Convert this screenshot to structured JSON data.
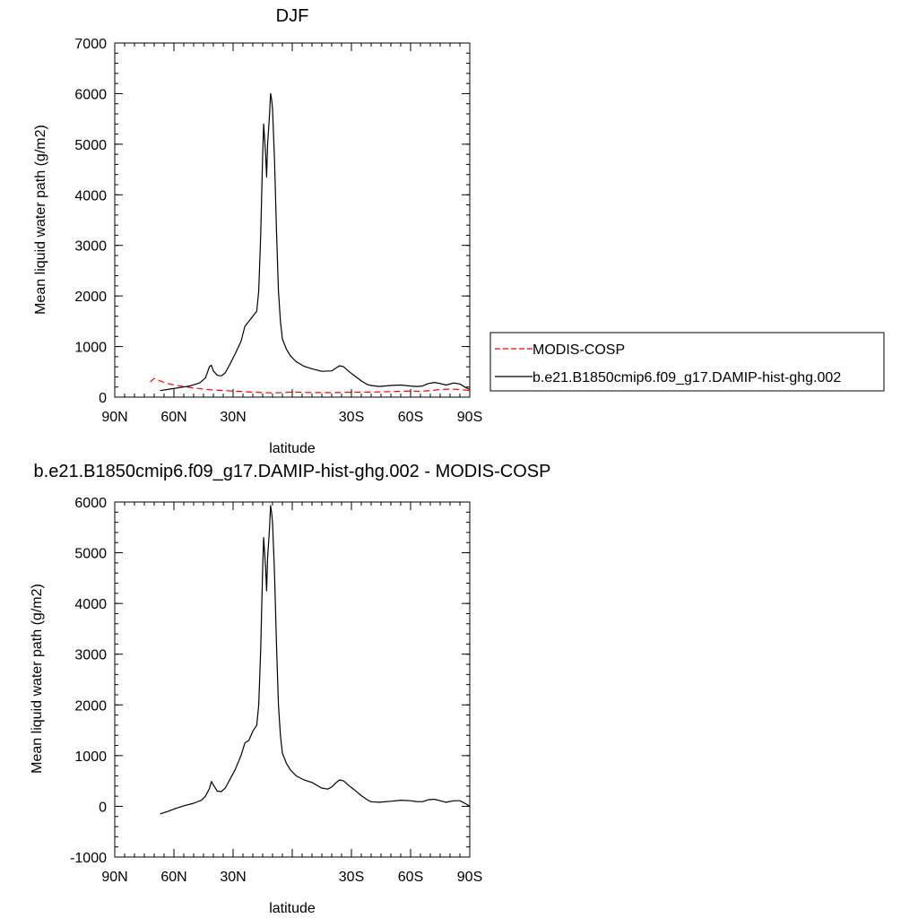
{
  "chart_data": [
    {
      "type": "line",
      "title": "DJF",
      "xlabel": "latitude",
      "ylabel": "Mean liquid water path (g/m2)",
      "xlim": [
        90,
        -90
      ],
      "ylim": [
        0,
        7000
      ],
      "x_ticks": [
        90,
        60,
        30,
        0,
        -30,
        -60,
        -90
      ],
      "x_tick_labels": [
        "90N",
        "60N",
        "30N",
        "",
        "30S",
        "60S",
        "90S"
      ],
      "y_ticks": [
        0,
        1000,
        2000,
        3000,
        4000,
        5000,
        6000,
        7000
      ],
      "y_tick_labels": [
        "0",
        "1000",
        "2000",
        "3000",
        "4000",
        "5000",
        "6000",
        "7000"
      ],
      "legend": {
        "placement": "right",
        "entries": [
          {
            "label": "MODIS-COSP",
            "color": "#ff0000",
            "dash": "dashed"
          },
          {
            "label": "b.e21.B1850cmip6.f09_g17.DAMIP-hist-ghg.002",
            "color": "#000000",
            "dash": "solid"
          }
        ]
      },
      "series": [
        {
          "name": "MODIS-COSP",
          "color": "#ff0000",
          "dash": "dashed",
          "points": [
            [
              72,
              300
            ],
            [
              70,
              370
            ],
            [
              67,
              320
            ],
            [
              64,
              280
            ],
            [
              60,
              240
            ],
            [
              55,
              210
            ],
            [
              50,
              180
            ],
            [
              45,
              160
            ],
            [
              40,
              140
            ],
            [
              30,
              120
            ],
            [
              20,
              100
            ],
            [
              15,
              90
            ],
            [
              10,
              85
            ],
            [
              5,
              90
            ],
            [
              0,
              100
            ],
            [
              -5,
              95
            ],
            [
              -10,
              90
            ],
            [
              -20,
              90
            ],
            [
              -30,
              95
            ],
            [
              -40,
              100
            ],
            [
              -50,
              110
            ],
            [
              -60,
              120
            ],
            [
              -65,
              115
            ],
            [
              -70,
              130
            ],
            [
              -75,
              150
            ],
            [
              -80,
              160
            ],
            [
              -85,
              150
            ],
            [
              -88,
              140
            ],
            [
              -90,
              130
            ]
          ]
        },
        {
          "name": "b.e21.B1850cmip6.f09_g17.DAMIP-hist-ghg.002",
          "color": "#000000",
          "dash": "solid",
          "points": [
            [
              67,
              130
            ],
            [
              62,
              160
            ],
            [
              57,
              190
            ],
            [
              52,
              220
            ],
            [
              47,
              280
            ],
            [
              44,
              380
            ],
            [
              42,
              600
            ],
            [
              41,
              630
            ],
            [
              40,
              520
            ],
            [
              38,
              430
            ],
            [
              36,
              420
            ],
            [
              34,
              480
            ],
            [
              32,
              620
            ],
            [
              29,
              850
            ],
            [
              26,
              1100
            ],
            [
              24,
              1400
            ],
            [
              22,
              1500
            ],
            [
              20,
              1600
            ],
            [
              18,
              1700
            ],
            [
              17,
              2100
            ],
            [
              16,
              3200
            ],
            [
              15,
              4800
            ],
            [
              14.5,
              5400
            ],
            [
              13.5,
              4800
            ],
            [
              13,
              4350
            ],
            [
              12.5,
              5000
            ],
            [
              11.5,
              5600
            ],
            [
              11,
              6000
            ],
            [
              10.5,
              5900
            ],
            [
              10,
              5700
            ],
            [
              9,
              4700
            ],
            [
              8,
              3300
            ],
            [
              7,
              2100
            ],
            [
              6,
              1500
            ],
            [
              5,
              1150
            ],
            [
              3,
              950
            ],
            [
              1,
              820
            ],
            [
              -2,
              700
            ],
            [
              -6,
              610
            ],
            [
              -10,
              560
            ],
            [
              -15,
              510
            ],
            [
              -20,
              520
            ],
            [
              -22,
              570
            ],
            [
              -24,
              620
            ],
            [
              -26,
              600
            ],
            [
              -29,
              500
            ],
            [
              -32,
              410
            ],
            [
              -35,
              320
            ],
            [
              -38,
              250
            ],
            [
              -40,
              230
            ],
            [
              -44,
              210
            ],
            [
              -50,
              230
            ],
            [
              -55,
              240
            ],
            [
              -60,
              220
            ],
            [
              -63,
              210
            ],
            [
              -66,
              220
            ],
            [
              -69,
              270
            ],
            [
              -72,
              290
            ],
            [
              -75,
              270
            ],
            [
              -78,
              240
            ],
            [
              -82,
              280
            ],
            [
              -85,
              260
            ],
            [
              -88,
              190
            ],
            [
              -90,
              150
            ]
          ]
        }
      ]
    },
    {
      "type": "line",
      "title": "b.e21.B1850cmip6.f09_g17.DAMIP-hist-ghg.002 - MODIS-COSP",
      "xlabel": "latitude",
      "ylabel": "Mean liquid water path (g/m2)",
      "xlim": [
        90,
        -90
      ],
      "ylim": [
        -1000,
        6000
      ],
      "x_ticks": [
        90,
        60,
        30,
        0,
        -30,
        -60,
        -90
      ],
      "x_tick_labels": [
        "90N",
        "60N",
        "30N",
        "",
        "30S",
        "60S",
        "90S"
      ],
      "y_ticks": [
        -1000,
        0,
        1000,
        2000,
        3000,
        4000,
        5000,
        6000
      ],
      "y_tick_labels": [
        "-1000",
        "0",
        "1000",
        "2000",
        "3000",
        "4000",
        "5000",
        "6000"
      ],
      "series": [
        {
          "color": "#000000",
          "dash": "solid",
          "points": [
            [
              67,
              -150
            ],
            [
              63,
              -100
            ],
            [
              59,
              -40
            ],
            [
              55,
              10
            ],
            [
              50,
              60
            ],
            [
              46,
              120
            ],
            [
              44,
              200
            ],
            [
              42,
              350
            ],
            [
              41,
              490
            ],
            [
              40,
              420
            ],
            [
              38,
              300
            ],
            [
              36,
              290
            ],
            [
              34,
              360
            ],
            [
              32,
              500
            ],
            [
              29,
              720
            ],
            [
              26,
              1000
            ],
            [
              24,
              1250
            ],
            [
              22,
              1300
            ],
            [
              20,
              1480
            ],
            [
              18,
              1600
            ],
            [
              17,
              2000
            ],
            [
              16,
              3100
            ],
            [
              15,
              4700
            ],
            [
              14.5,
              5300
            ],
            [
              13.5,
              4700
            ],
            [
              13,
              4250
            ],
            [
              12.5,
              4900
            ],
            [
              11.5,
              5500
            ],
            [
              11,
              5930
            ],
            [
              10.5,
              5800
            ],
            [
              10,
              5600
            ],
            [
              9,
              4600
            ],
            [
              8,
              3200
            ],
            [
              7,
              2000
            ],
            [
              6,
              1400
            ],
            [
              5,
              1050
            ],
            [
              3,
              850
            ],
            [
              1,
              720
            ],
            [
              -2,
              600
            ],
            [
              -6,
              520
            ],
            [
              -10,
              470
            ],
            [
              -15,
              360
            ],
            [
              -18,
              340
            ],
            [
              -20,
              380
            ],
            [
              -22,
              460
            ],
            [
              -24,
              520
            ],
            [
              -26,
              500
            ],
            [
              -29,
              400
            ],
            [
              -32,
              310
            ],
            [
              -35,
              210
            ],
            [
              -38,
              130
            ],
            [
              -40,
              90
            ],
            [
              -44,
              80
            ],
            [
              -50,
              100
            ],
            [
              -55,
              120
            ],
            [
              -60,
              110
            ],
            [
              -63,
              95
            ],
            [
              -66,
              90
            ],
            [
              -69,
              130
            ],
            [
              -72,
              140
            ],
            [
              -75,
              110
            ],
            [
              -78,
              80
            ],
            [
              -82,
              110
            ],
            [
              -85,
              110
            ],
            [
              -88,
              50
            ],
            [
              -90,
              0
            ]
          ]
        }
      ]
    }
  ]
}
